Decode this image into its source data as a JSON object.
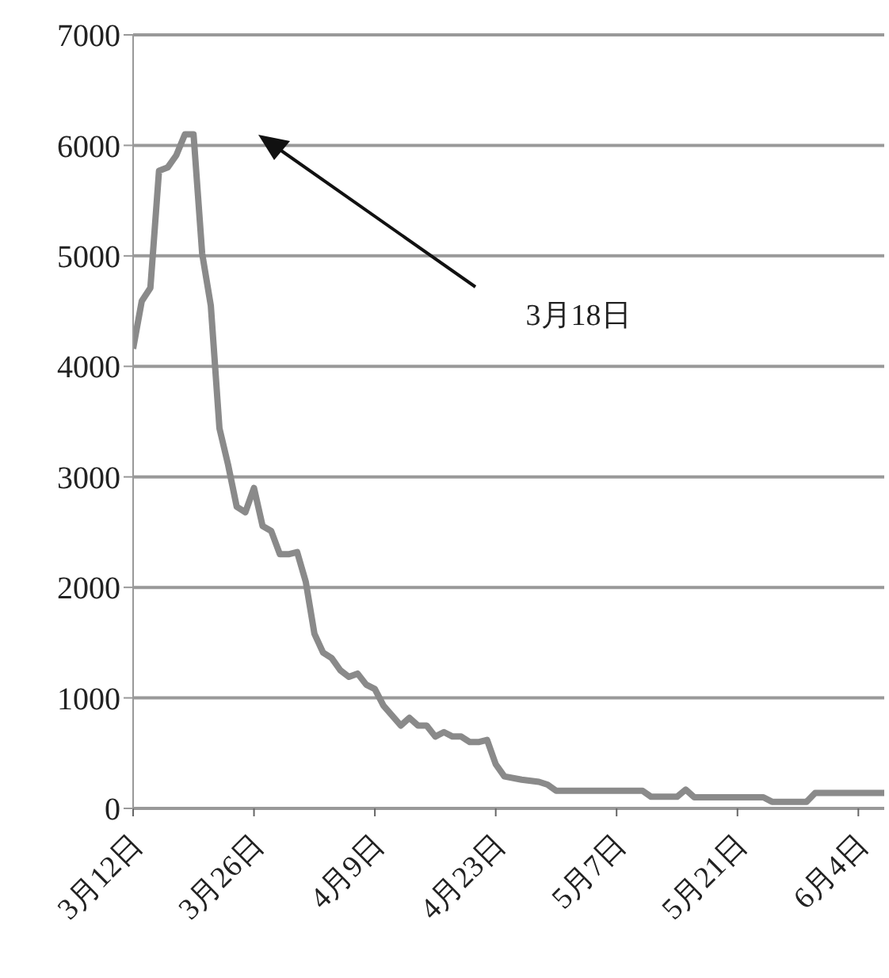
{
  "chart_data": {
    "type": "line",
    "x": [
      "--03-12",
      "--03-13",
      "--03-14",
      "--03-15",
      "--03-16",
      "--03-17",
      "--03-18",
      "--03-19",
      "--03-20",
      "--03-21",
      "--03-22",
      "--03-23",
      "--03-24",
      "--03-25",
      "--03-26",
      "--03-27",
      "--03-28",
      "--03-29",
      "--03-30",
      "--03-31",
      "--04-01",
      "--04-02",
      "--04-03",
      "--04-04",
      "--04-05",
      "--04-06",
      "--04-07",
      "--04-08",
      "--04-09",
      "--04-10",
      "--04-12",
      "--04-13",
      "--04-14",
      "--04-15",
      "--04-16",
      "--04-17",
      "--04-18",
      "--04-19",
      "--04-20",
      "--04-21",
      "--04-22",
      "--04-23",
      "--04-24",
      "--04-26",
      "--04-28",
      "--04-29",
      "--04-30",
      "--05-10",
      "--05-11",
      "--05-14",
      "--05-15",
      "--05-16",
      "--05-24",
      "--05-25",
      "--05-29",
      "--05-30",
      "--06-07"
    ],
    "series": [
      {
        "color": "#8a8a8a",
        "values": [
          4160,
          4590,
          4710,
          5770,
          5800,
          5910,
          6100,
          6100,
          5020,
          4550,
          3440,
          3110,
          2730,
          2680,
          2900,
          2555,
          2510,
          2300,
          2300,
          2320,
          2050,
          1580,
          1410,
          1360,
          1250,
          1190,
          1220,
          1120,
          1080,
          930,
          750,
          820,
          750,
          750,
          650,
          690,
          650,
          650,
          600,
          600,
          620,
          400,
          290,
          260,
          240,
          215,
          160,
          160,
          105,
          105,
          170,
          100,
          100,
          60,
          60,
          140,
          140
        ]
      }
    ],
    "xlim": [
      "--03-12",
      "--06-07"
    ],
    "xticks": [
      {
        "value": "--03-12",
        "label": "3月12日"
      },
      {
        "value": "--03-26",
        "label": "3月26日"
      },
      {
        "value": "--04-09",
        "label": "4月9日"
      },
      {
        "value": "--04-23",
        "label": "4月23日"
      },
      {
        "value": "--05-07",
        "label": "5月7日"
      },
      {
        "value": "--05-21",
        "label": "5月21日"
      },
      {
        "value": "--06-04",
        "label": "6月4日"
      }
    ],
    "ylim": [
      0,
      7000
    ],
    "yticks": [
      0,
      1000,
      2000,
      3000,
      4000,
      5000,
      6000,
      7000
    ],
    "grid": "y",
    "legend": false,
    "marker": "none",
    "line_style": "solid",
    "annotations": [
      "3月18日"
    ]
  }
}
